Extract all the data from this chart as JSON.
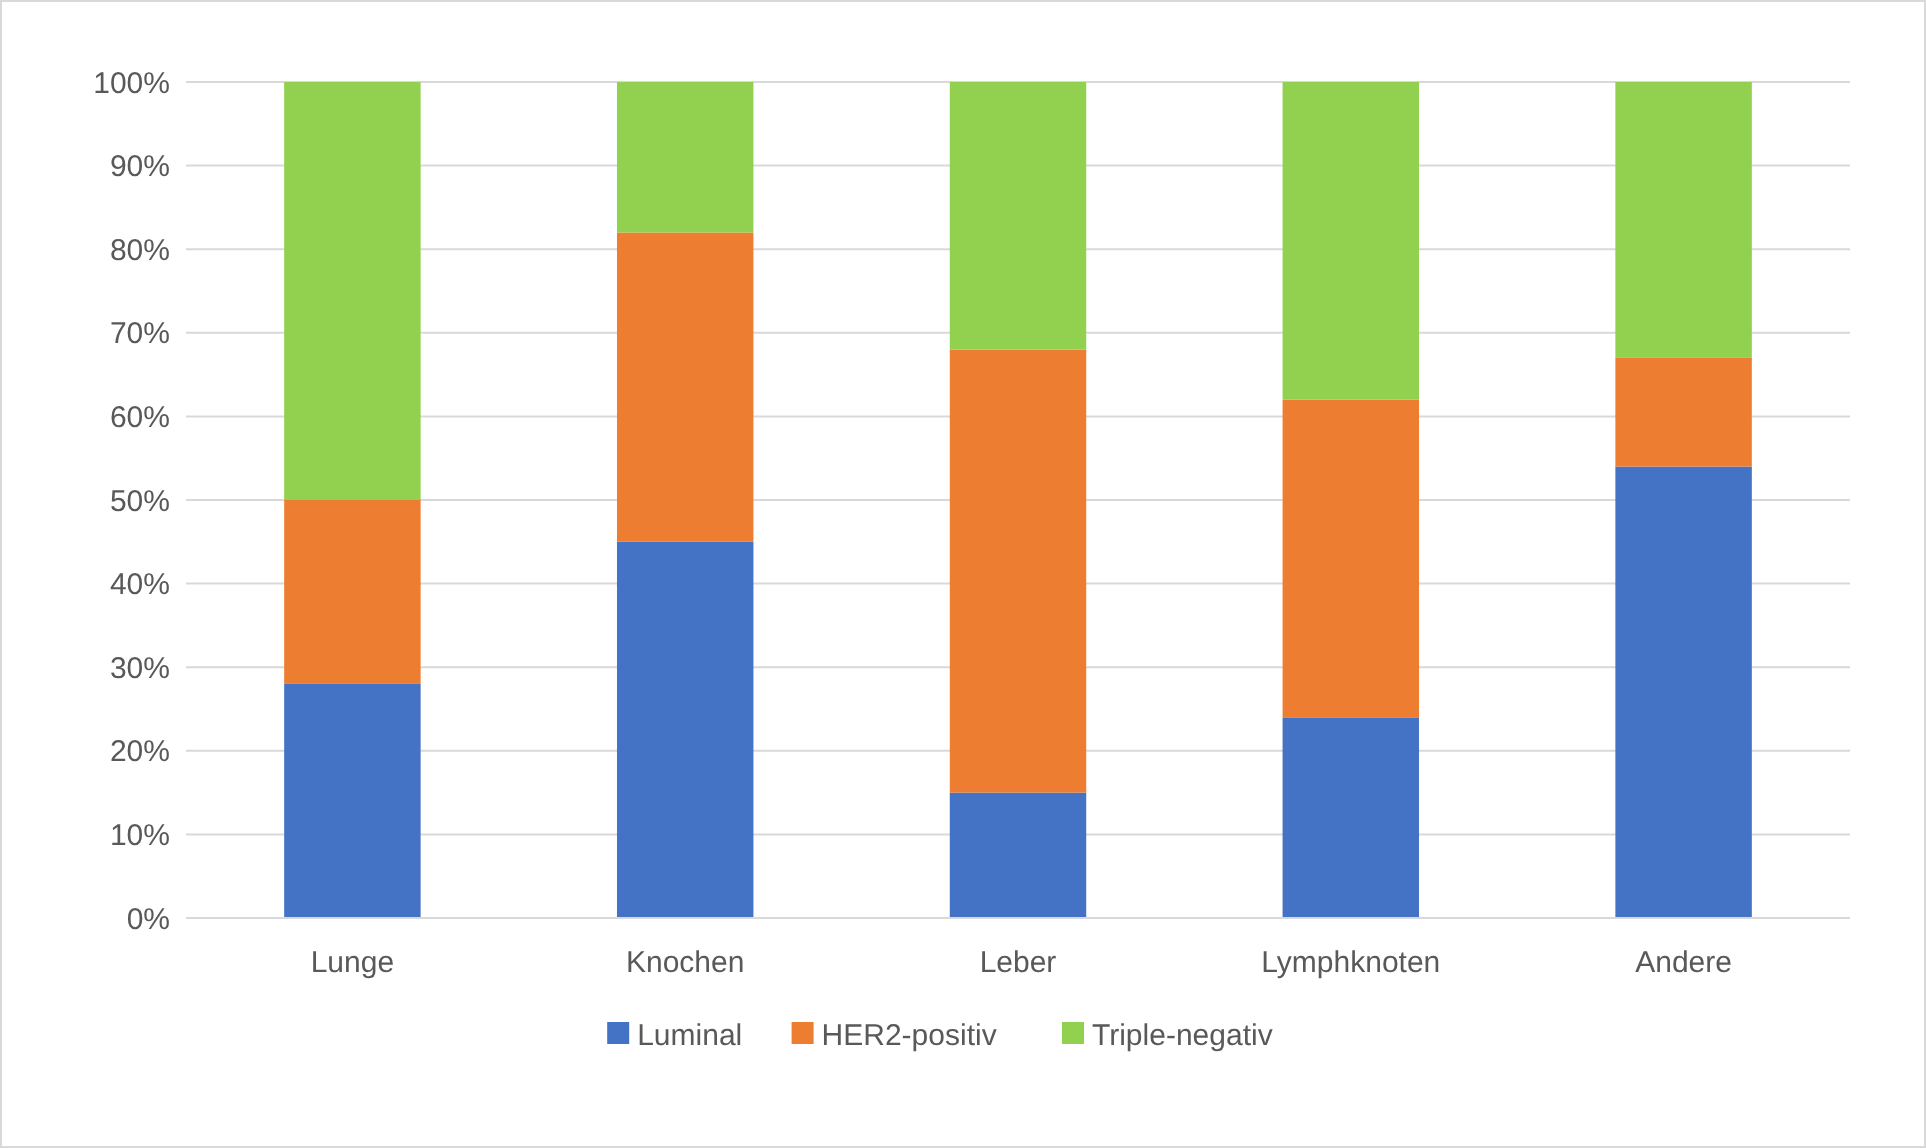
{
  "chart_data": {
    "type": "bar",
    "stacked": true,
    "categories": [
      "Lunge",
      "Knochen",
      "Leber",
      "Lymphknoten",
      "Andere"
    ],
    "series": [
      {
        "name": "Luminal",
        "color": "#4472c4",
        "values": [
          28,
          45,
          15,
          24,
          54
        ]
      },
      {
        "name": "HER2-positiv",
        "color": "#ed7d31",
        "values": [
          22,
          37,
          53,
          38,
          13
        ]
      },
      {
        "name": "Triple-negativ",
        "color": "#92d050",
        "values": [
          50,
          18,
          32,
          38,
          33
        ]
      }
    ],
    "ylim": [
      0,
      100
    ],
    "yticks": [
      {
        "value": 0,
        "label": "0%"
      },
      {
        "value": 10,
        "label": "10%"
      },
      {
        "value": 20,
        "label": "20%"
      },
      {
        "value": 30,
        "label": "30%"
      },
      {
        "value": 40,
        "label": "40%"
      },
      {
        "value": 50,
        "label": "50%"
      },
      {
        "value": 60,
        "label": "60%"
      },
      {
        "value": 70,
        "label": "70%"
      },
      {
        "value": 80,
        "label": "80%"
      },
      {
        "value": 90,
        "label": "90%"
      },
      {
        "value": 100,
        "label": "100%"
      }
    ],
    "grid": "y",
    "legend": "bottom"
  }
}
